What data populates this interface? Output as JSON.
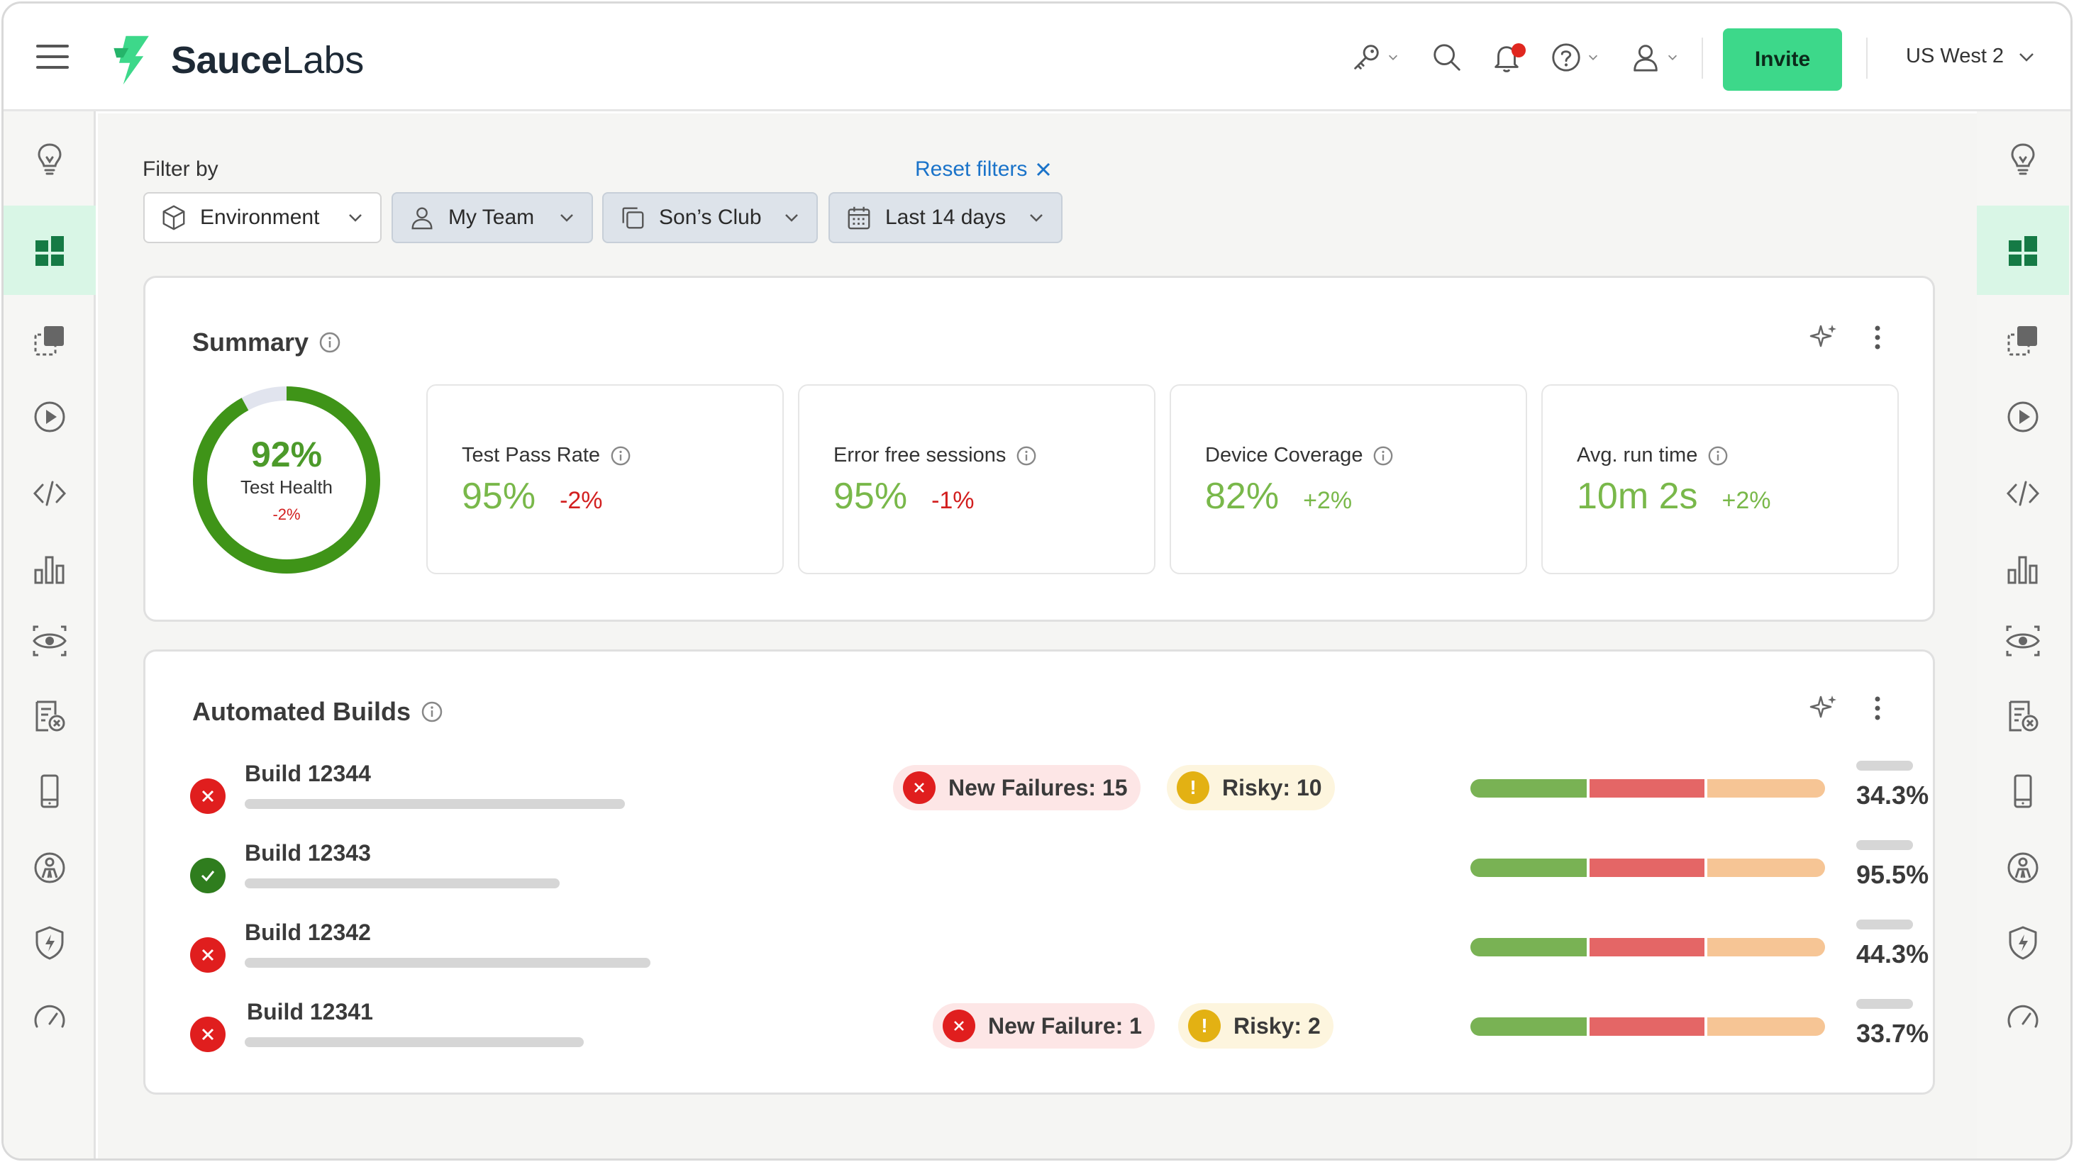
{
  "header": {
    "brand_bold": "Sauce",
    "brand_light": "Labs",
    "invite_label": "Invite",
    "region_label": "US West 2"
  },
  "filters": {
    "label": "Filter by",
    "reset_label": "Reset filters",
    "items": [
      {
        "label": "Environment",
        "icon": "cube-icon"
      },
      {
        "label": "My Team",
        "icon": "person-icon"
      },
      {
        "label": "Son’s Club",
        "icon": "copy-icon"
      },
      {
        "label": "Last 14 days",
        "icon": "calendar-icon"
      }
    ]
  },
  "summary": {
    "title": "Summary",
    "health": {
      "value": "92%",
      "label": "Test Health",
      "delta": "-2%",
      "fraction": 0.92
    },
    "metrics": [
      {
        "label": "Test Pass Rate",
        "value": "95%",
        "delta": "-2%",
        "trend": "neg"
      },
      {
        "label": "Error free sessions",
        "value": "95%",
        "delta": "-1%",
        "trend": "neg"
      },
      {
        "label": "Device Coverage",
        "value": "82%",
        "delta": "+2%",
        "trend": "pos"
      },
      {
        "label": "Avg. run time",
        "value": "10m 2s",
        "delta": "+2%",
        "trend": "pos"
      }
    ]
  },
  "builds": {
    "title": "Automated Builds",
    "rows": [
      {
        "name": "Build 12344",
        "status": "fail",
        "failures": "New Failures: 15",
        "risky": "Risky: 10",
        "pct": "34.3%"
      },
      {
        "name": "Build 12343",
        "status": "pass",
        "failures": "",
        "risky": "",
        "pct": "95.5%"
      },
      {
        "name": "Build 12342",
        "status": "fail",
        "failures": "",
        "risky": "",
        "pct": "44.3%"
      },
      {
        "name": "Build 12341",
        "status": "fail",
        "failures": "New Failure: 1",
        "risky": "Risky: 2",
        "pct": "33.7%"
      }
    ]
  },
  "colors": {
    "accent": "#3dd88a",
    "pass": "#79b84a",
    "fail": "#d21f1f",
    "link": "#1a73c9"
  }
}
